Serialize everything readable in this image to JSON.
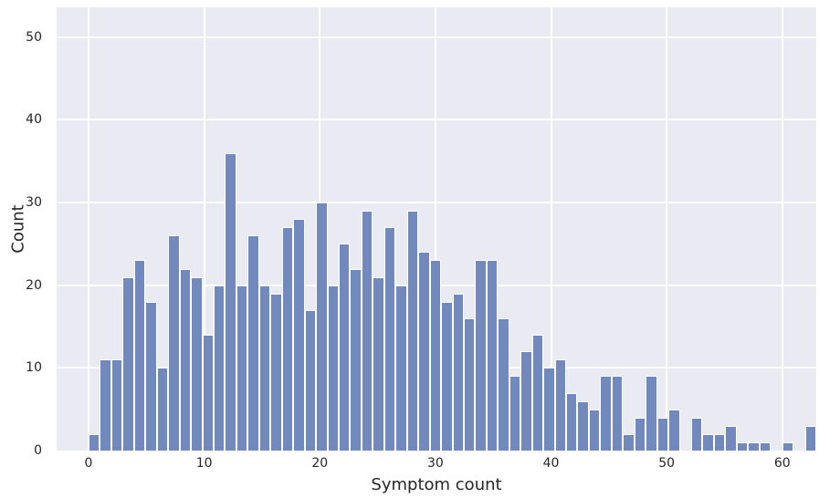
{
  "figure": {
    "background_color": "#ffffff",
    "axes_background_color": "#eaebf2",
    "grid_color": "#ffffff",
    "bar_fill_color": "#7289bd",
    "bar_edge_color": "#ffffff",
    "text_color": "#262626"
  },
  "chart_data": {
    "type": "bar",
    "subtype": "histogram",
    "title": "",
    "xlabel": "Symptom count",
    "ylabel": "Count",
    "x_ticks": [
      0,
      10,
      20,
      30,
      40,
      50,
      60
    ],
    "y_ticks": [
      0,
      10,
      20,
      30,
      40,
      50
    ],
    "xlim": [
      -2.8,
      63.0
    ],
    "ylim": [
      0,
      53.6
    ],
    "grid": true,
    "legend": false,
    "bin_start": 0,
    "bin_width": 0.98,
    "bin_count": 64,
    "values": [
      2,
      11,
      11,
      21,
      23,
      18,
      10,
      26,
      22,
      21,
      14,
      20,
      36,
      20,
      26,
      20,
      19,
      27,
      28,
      17,
      30,
      20,
      25,
      22,
      29,
      21,
      27,
      20,
      29,
      24,
      23,
      18,
      19,
      16,
      23,
      23,
      16,
      9,
      12,
      14,
      10,
      11,
      7,
      6,
      5,
      9,
      9,
      2,
      4,
      9,
      4,
      5,
      0,
      4,
      2,
      2,
      3,
      1,
      1,
      1,
      0,
      1,
      0,
      3
    ]
  }
}
